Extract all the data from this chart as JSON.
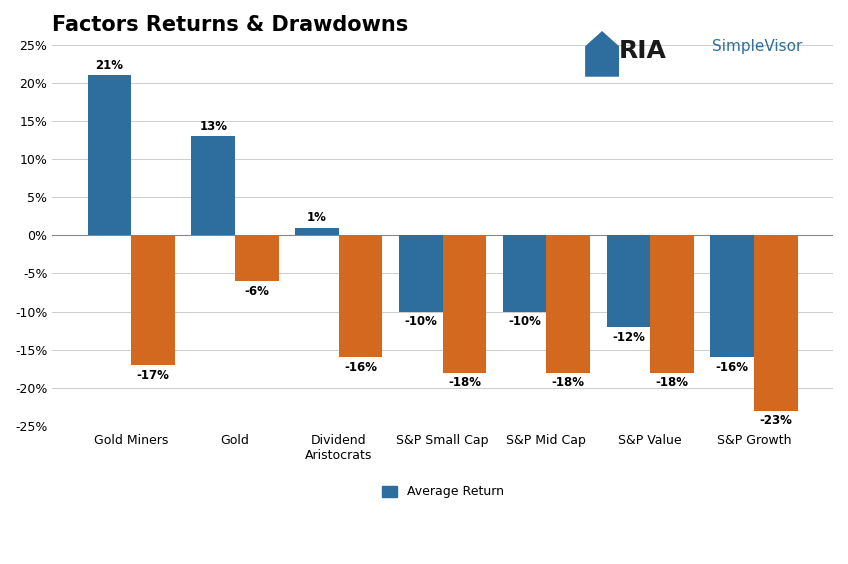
{
  "title": "Factors Returns & Drawdowns",
  "categories": [
    "Gold Miners",
    "Gold",
    "Dividend\nAristocrats",
    "S&P Small Cap",
    "S&P Mid Cap",
    "S&P Value",
    "S&P Growth"
  ],
  "avg_returns": [
    21,
    13,
    1,
    -10,
    -10,
    -12,
    -16
  ],
  "drawdowns": [
    -17,
    -6,
    -16,
    -18,
    -18,
    -18,
    -23
  ],
  "bar_color_blue": "#2E6E9E",
  "bar_color_orange": "#D2691E",
  "ylim": [
    -25,
    25
  ],
  "yticks": [
    -25,
    -20,
    -15,
    -10,
    -5,
    0,
    5,
    10,
    15,
    20,
    25
  ],
  "legend_label_blue": "Average Return",
  "background_color": "#FFFFFF",
  "grid_color": "#CCCCCC",
  "bar_width": 0.42,
  "title_fontsize": 15,
  "tick_fontsize": 9,
  "label_fontsize": 8.5,
  "ria_text": "RIA",
  "simplevisor_text": "SimpleVisor"
}
